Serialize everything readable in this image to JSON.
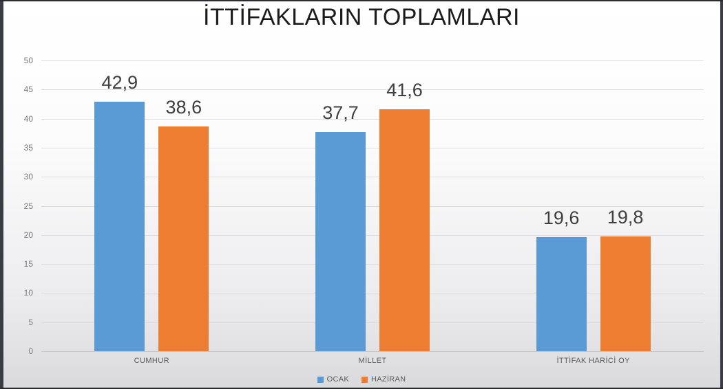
{
  "window": {
    "edge_color": "#3b3b45",
    "background_top": "#ffffff",
    "background_bottom": "#dadadc"
  },
  "chart_data": {
    "type": "bar",
    "title": "İTTİFAKLARIN TOPLAMLARI",
    "categories": [
      "CUMHUR",
      "MİLLET",
      "İTTİFAK HARİCİ OY"
    ],
    "series": [
      {
        "name": "OCAK",
        "color": "#5B9BD5",
        "values": [
          42.9,
          37.7,
          19.6
        ]
      },
      {
        "name": "HAZİRAN",
        "color": "#ED7D31",
        "values": [
          38.6,
          41.6,
          19.8
        ]
      }
    ],
    "value_labels": [
      [
        "42,9",
        "37,7",
        "19,6"
      ],
      [
        "38,6",
        "41,6",
        "19,8"
      ]
    ],
    "ylim": [
      0,
      50
    ],
    "yticks": [
      0,
      5,
      10,
      15,
      20,
      25,
      30,
      35,
      40,
      45,
      50
    ],
    "xlabel": "",
    "ylabel": "",
    "grid": true,
    "legend_position": "bottom"
  }
}
